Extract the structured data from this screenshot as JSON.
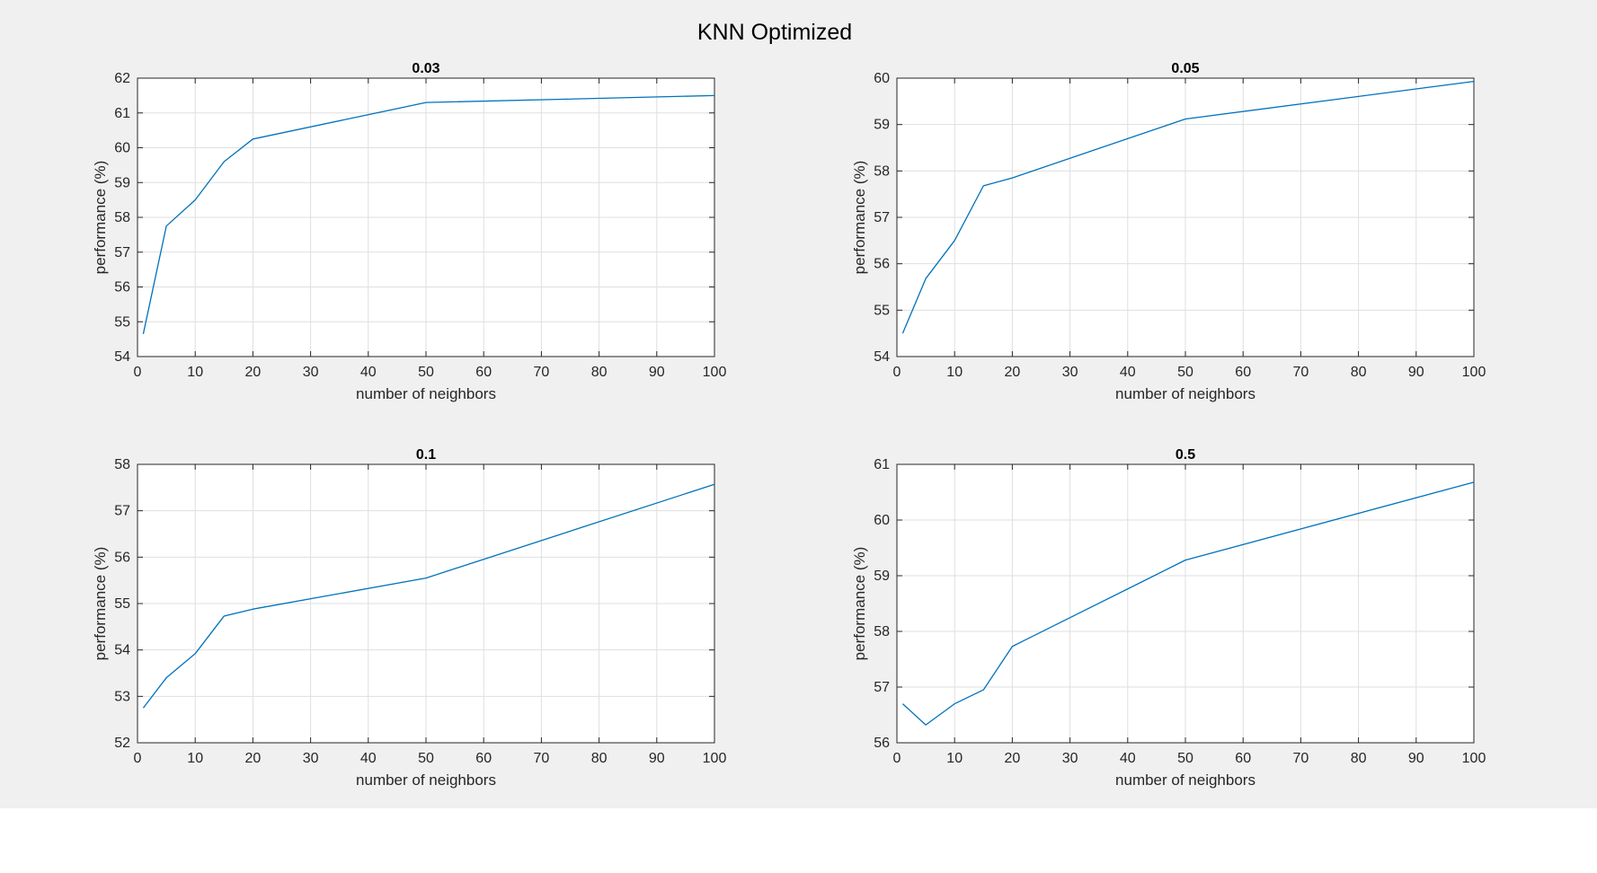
{
  "figure": {
    "title": "KNN Optimized"
  },
  "colors": {
    "figure_background": "#f0f0f0",
    "axes_background": "#ffffff",
    "axes_border": "#262626",
    "grid": "#dfdfdf",
    "line": "#0072bd"
  },
  "chart_data": [
    {
      "type": "line",
      "title": "0.03",
      "xlabel": "number of neighbors",
      "ylabel": "performance (%)",
      "xlim": [
        0,
        100
      ],
      "ylim": [
        54,
        62
      ],
      "xticks": [
        0,
        10,
        20,
        30,
        40,
        50,
        60,
        70,
        80,
        90,
        100
      ],
      "yticks": [
        54,
        55,
        56,
        57,
        58,
        59,
        60,
        61,
        62
      ],
      "grid": true,
      "x": [
        1,
        5,
        10,
        15,
        20,
        50,
        100
      ],
      "series": [
        {
          "values": [
            54.65,
            57.75,
            58.5,
            59.6,
            60.25,
            61.3,
            61.5
          ]
        }
      ]
    },
    {
      "type": "line",
      "title": "0.05",
      "xlabel": "number of neighbors",
      "ylabel": "performance (%)",
      "xlim": [
        0,
        100
      ],
      "ylim": [
        54,
        60
      ],
      "xticks": [
        0,
        10,
        20,
        30,
        40,
        50,
        60,
        70,
        80,
        90,
        100
      ],
      "yticks": [
        54,
        55,
        56,
        57,
        58,
        59,
        60
      ],
      "grid": true,
      "x": [
        1,
        5,
        10,
        15,
        20,
        50,
        100
      ],
      "series": [
        {
          "values": [
            54.5,
            55.68,
            56.5,
            57.68,
            57.85,
            59.12,
            59.93
          ]
        }
      ]
    },
    {
      "type": "line",
      "title": "0.1",
      "xlabel": "number of neighbors",
      "ylabel": "performance (%)",
      "xlim": [
        0,
        100
      ],
      "ylim": [
        52,
        58
      ],
      "xticks": [
        0,
        10,
        20,
        30,
        40,
        50,
        60,
        70,
        80,
        90,
        100
      ],
      "yticks": [
        52,
        53,
        54,
        55,
        56,
        57,
        58
      ],
      "grid": true,
      "x": [
        1,
        5,
        10,
        15,
        20,
        50,
        100
      ],
      "series": [
        {
          "values": [
            52.75,
            53.4,
            53.92,
            54.73,
            54.88,
            55.55,
            57.57
          ]
        }
      ]
    },
    {
      "type": "line",
      "title": "0.5",
      "xlabel": "number of neighbors",
      "ylabel": "performance (%)",
      "xlim": [
        0,
        100
      ],
      "ylim": [
        56,
        61
      ],
      "xticks": [
        0,
        10,
        20,
        30,
        40,
        50,
        60,
        70,
        80,
        90,
        100
      ],
      "yticks": [
        56,
        57,
        58,
        59,
        60,
        61
      ],
      "grid": true,
      "x": [
        1,
        5,
        10,
        15,
        20,
        50,
        100
      ],
      "series": [
        {
          "values": [
            56.7,
            56.32,
            56.7,
            56.95,
            57.73,
            59.28,
            60.68
          ]
        }
      ]
    }
  ]
}
